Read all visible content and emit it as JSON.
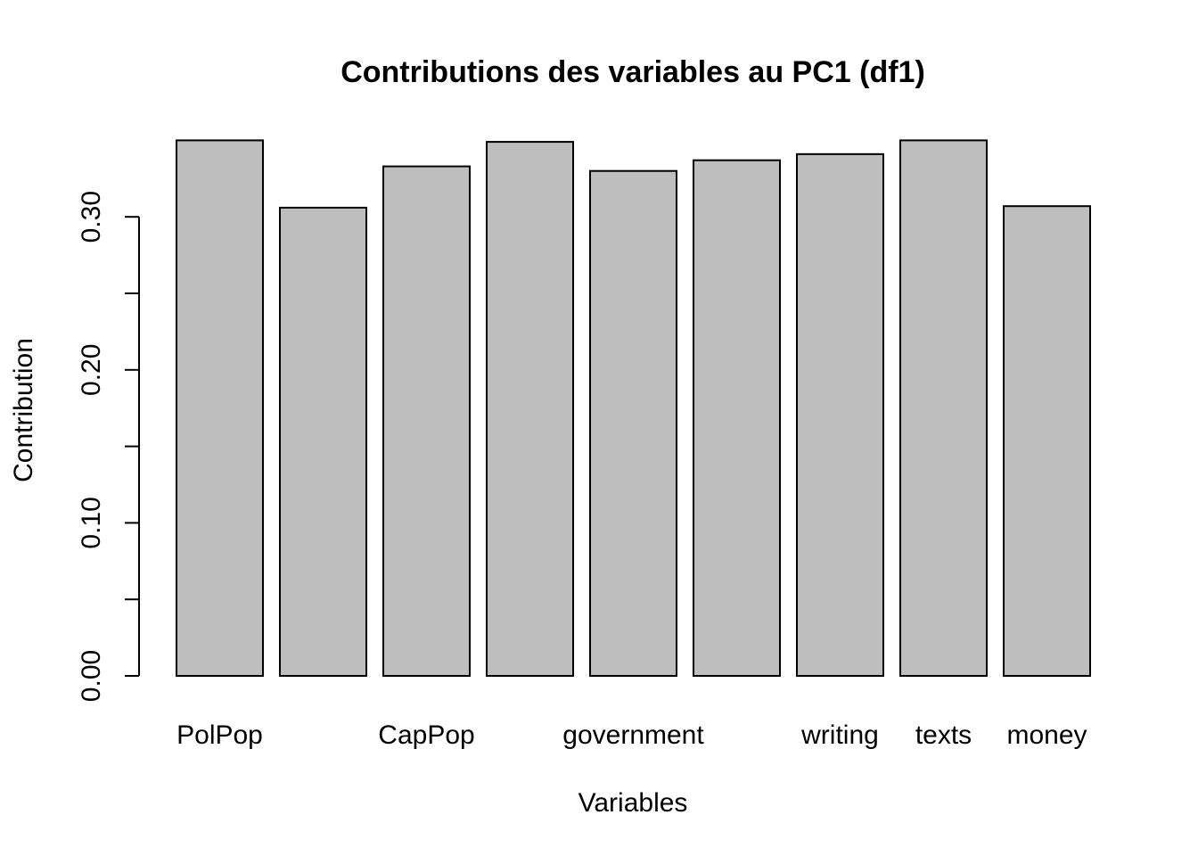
{
  "chart_data": {
    "type": "bar",
    "title": "Contributions des variables au PC1 (df1)",
    "xlabel": "Variables",
    "ylabel": "Contribution",
    "ylim": [
      0,
      0.36
    ],
    "yticks": [
      0.0,
      0.05,
      0.1,
      0.15,
      0.2,
      0.25,
      0.3
    ],
    "ytick_labels": [
      "0.00",
      "",
      "0.10",
      "",
      "0.20",
      "",
      "0.30"
    ],
    "categories": [
      "PolPop",
      "",
      "CapPop",
      "",
      "government",
      "",
      "writing",
      "texts",
      "money"
    ],
    "values": [
      0.35,
      0.306,
      0.333,
      0.349,
      0.33,
      0.337,
      0.341,
      0.35,
      0.307
    ],
    "bar_color": "#bebebe",
    "grid": false,
    "legend": "none"
  }
}
